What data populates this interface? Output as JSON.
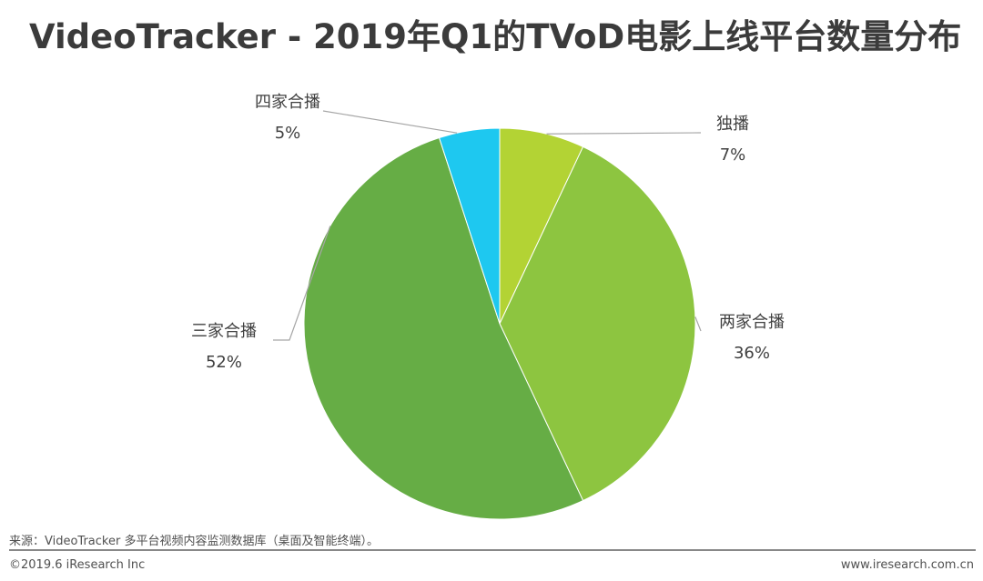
{
  "header": {
    "title": "VideoTracker - 2019年Q1的TVoD电影上线平台数量分布"
  },
  "chart_data": {
    "type": "pie",
    "title": "VideoTracker - 2019年Q1的TVoD电影上线平台数量分布",
    "slices": [
      {
        "label": "独播",
        "value": 7,
        "value_label": "7%",
        "color": "#b3d334"
      },
      {
        "label": "两家合播",
        "value": 36,
        "value_label": "36%",
        "color": "#8dc540"
      },
      {
        "label": "三家合播",
        "value": 52,
        "value_label": "52%",
        "color": "#66ad45"
      },
      {
        "label": "四家合播",
        "value": 5,
        "value_label": "5%",
        "color": "#1ec8f0"
      }
    ],
    "start_angle": "12 o'clock",
    "direction": "clockwise"
  },
  "footer": {
    "source": "来源：VideoTracker 多平台视频内容监测数据库（桌面及智能终端）。",
    "copyright": "©2019.6 iResearch Inc",
    "website": "www.iresearch.com.cn"
  }
}
